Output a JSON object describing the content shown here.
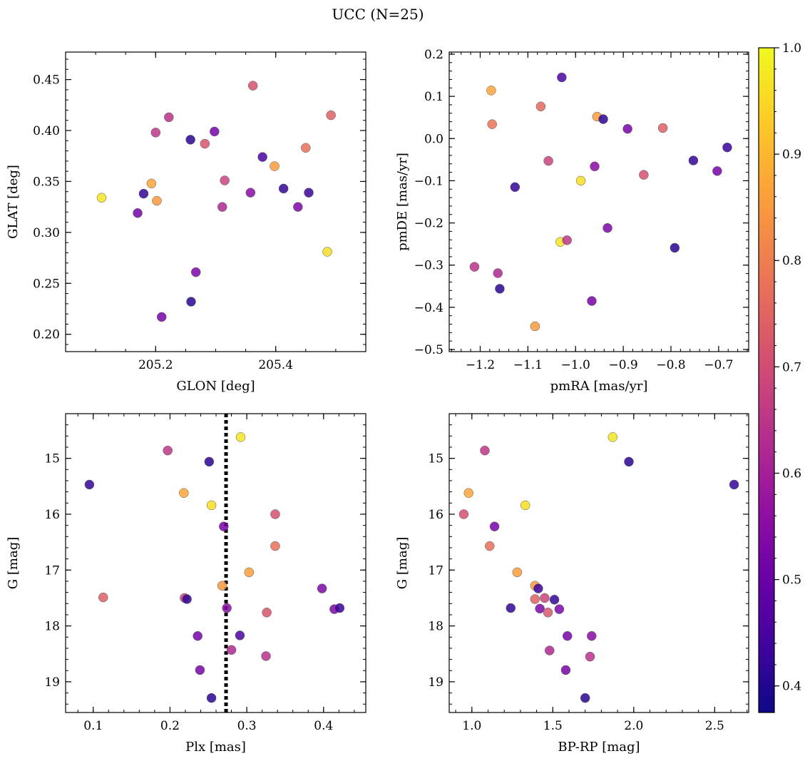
{
  "figure": {
    "title": "UCC (N=25)"
  },
  "colormap": {
    "name": "plasma",
    "stops": [
      "#0d0887",
      "#46039f",
      "#7201a8",
      "#9c179e",
      "#bd3786",
      "#d8576b",
      "#ed7953",
      "#fb9f3a",
      "#fdca26",
      "#f0f921"
    ]
  },
  "chart_data": [
    {
      "type": "scatter",
      "xlabel": "GLON [deg]",
      "ylabel": "GLAT [deg]",
      "xlim": [
        205.05,
        205.55
      ],
      "ylim": [
        0.183,
        0.477
      ],
      "xticks": [
        205.2,
        205.4
      ],
      "xtick_labels": [
        "205.2",
        "205.4"
      ],
      "yticks": [
        0.2,
        0.25,
        0.3,
        0.35,
        0.4,
        0.45
      ],
      "ytick_labels": [
        "0.20",
        "0.25",
        "0.30",
        "0.35",
        "0.40",
        "0.45"
      ],
      "x": [
        205.11,
        205.17,
        205.18,
        205.193,
        205.2,
        205.202,
        205.21,
        205.222,
        205.258,
        205.259,
        205.267,
        205.282,
        205.298,
        205.311,
        205.315,
        205.358,
        205.362,
        205.378,
        205.398,
        205.413,
        205.437,
        205.45,
        205.455,
        205.486,
        205.492
      ],
      "y": [
        0.334,
        0.319,
        0.338,
        0.348,
        0.398,
        0.331,
        0.217,
        0.413,
        0.391,
        0.232,
        0.261,
        0.387,
        0.399,
        0.325,
        0.351,
        0.339,
        0.444,
        0.374,
        0.365,
        0.343,
        0.325,
        0.383,
        0.339,
        0.281,
        0.415
      ],
      "c": [
        0.97,
        0.52,
        0.42,
        0.87,
        0.65,
        0.85,
        0.52,
        0.64,
        0.41,
        0.41,
        0.53,
        0.72,
        0.52,
        0.62,
        0.68,
        0.55,
        0.71,
        0.45,
        0.86,
        0.42,
        0.53,
        0.77,
        0.43,
        0.96,
        0.74
      ]
    },
    {
      "type": "scatter",
      "xlabel": "pmRA [mas/yr]",
      "ylabel": "pmDE [mas/yr]",
      "xlim": [
        -1.265,
        -0.637
      ],
      "ylim": [
        -0.505,
        0.205
      ],
      "xticks": [
        -1.2,
        -1.1,
        -1.0,
        -0.9,
        -0.8,
        -0.7
      ],
      "xtick_labels": [
        "−1.2",
        "−1.1",
        "−1.0",
        "−0.9",
        "−0.8",
        "−0.7"
      ],
      "yticks": [
        -0.5,
        -0.4,
        -0.3,
        -0.2,
        -0.1,
        0.0,
        0.1,
        0.2
      ],
      "ytick_labels": [
        "−0.5",
        "−0.4",
        "−0.3",
        "−0.2",
        "−0.1",
        "0.0",
        "0.1",
        "0.2"
      ],
      "x": [
        -1.177,
        -1.175,
        -1.073,
        -0.955,
        -0.942,
        -0.891,
        -0.817,
        -1.029,
        -0.753,
        -0.703,
        -0.682,
        -1.057,
        -0.96,
        -0.857,
        -0.989,
        -1.127,
        -1.032,
        -1.018,
        -0.933,
        -0.792,
        -1.212,
        -1.163,
        -1.159,
        -0.966,
        -1.085
      ],
      "y": [
        0.114,
        0.034,
        0.076,
        0.052,
        0.046,
        0.023,
        0.025,
        0.145,
        -0.052,
        -0.077,
        -0.021,
        -0.053,
        -0.066,
        -0.086,
        -0.1,
        -0.115,
        -0.245,
        -0.241,
        -0.212,
        -0.259,
        -0.304,
        -0.319,
        -0.356,
        -0.385,
        -0.445
      ],
      "c": [
        0.87,
        0.78,
        0.76,
        0.86,
        0.41,
        0.52,
        0.74,
        0.45,
        0.42,
        0.52,
        0.43,
        0.68,
        0.55,
        0.71,
        0.96,
        0.42,
        0.97,
        0.65,
        0.53,
        0.41,
        0.64,
        0.62,
        0.41,
        0.52,
        0.85
      ]
    },
    {
      "type": "scatter",
      "xlabel": "Plx [mas]",
      "ylabel": "G [mag]",
      "invert_y": true,
      "xlim": [
        0.064,
        0.455
      ],
      "ylim": [
        14.2,
        19.55
      ],
      "xticks": [
        0.1,
        0.2,
        0.3,
        0.4
      ],
      "xtick_labels": [
        "0.1",
        "0.2",
        "0.3",
        "0.4"
      ],
      "yticks": [
        15,
        16,
        17,
        18,
        19
      ],
      "ytick_labels": [
        "15",
        "16",
        "17",
        "18",
        "19"
      ],
      "vline_x": 0.273,
      "x": [
        0.292,
        0.197,
        0.251,
        0.095,
        0.218,
        0.254,
        0.337,
        0.27,
        0.337,
        0.303,
        0.268,
        0.113,
        0.219,
        0.222,
        0.398,
        0.414,
        0.421,
        0.274,
        0.326,
        0.236,
        0.291,
        0.28,
        0.325,
        0.239,
        0.254
      ],
      "y": [
        14.62,
        14.86,
        15.06,
        15.47,
        15.62,
        15.84,
        16.0,
        16.22,
        16.57,
        17.04,
        17.28,
        17.49,
        17.5,
        17.52,
        17.33,
        17.7,
        17.68,
        17.68,
        17.76,
        18.18,
        18.17,
        18.43,
        18.54,
        18.79,
        19.29
      ],
      "c": [
        0.97,
        0.65,
        0.41,
        0.42,
        0.87,
        0.96,
        0.71,
        0.52,
        0.77,
        0.86,
        0.85,
        0.74,
        0.68,
        0.42,
        0.53,
        0.53,
        0.43,
        0.55,
        0.72,
        0.52,
        0.45,
        0.62,
        0.64,
        0.52,
        0.41
      ]
    },
    {
      "type": "scatter",
      "xlabel": "BP-RP [mag]",
      "ylabel": "G [mag]",
      "invert_y": true,
      "xlim": [
        0.86,
        2.71
      ],
      "ylim": [
        14.2,
        19.55
      ],
      "xticks": [
        1.0,
        1.5,
        2.0,
        2.5
      ],
      "xtick_labels": [
        "1.0",
        "1.5",
        "2.0",
        "2.5"
      ],
      "yticks": [
        15,
        16,
        17,
        18,
        19
      ],
      "ytick_labels": [
        "15",
        "16",
        "17",
        "18",
        "19"
      ],
      "x": [
        1.87,
        1.08,
        1.97,
        2.62,
        0.98,
        1.33,
        0.95,
        1.14,
        1.11,
        1.28,
        1.39,
        1.41,
        1.39,
        1.45,
        1.51,
        1.24,
        1.42,
        1.47,
        1.54,
        1.59,
        1.74,
        1.48,
        1.73,
        1.58,
        1.7
      ],
      "y": [
        14.62,
        14.86,
        15.06,
        15.47,
        15.62,
        15.84,
        16.0,
        16.22,
        16.57,
        17.04,
        17.28,
        17.33,
        17.52,
        17.5,
        17.53,
        17.68,
        17.69,
        17.76,
        17.7,
        18.18,
        18.18,
        18.44,
        18.55,
        18.79,
        19.29
      ],
      "c": [
        0.97,
        0.65,
        0.41,
        0.42,
        0.87,
        0.96,
        0.71,
        0.52,
        0.77,
        0.86,
        0.85,
        0.43,
        0.74,
        0.68,
        0.42,
        0.42,
        0.53,
        0.72,
        0.53,
        0.52,
        0.55,
        0.62,
        0.64,
        0.52,
        0.41
      ]
    }
  ],
  "colorbar": {
    "vmin": 0.375,
    "vmax": 1.0,
    "ticks": [
      0.4,
      0.5,
      0.6,
      0.7,
      0.8,
      0.9,
      1.0
    ],
    "tick_labels": [
      "0.4",
      "0.5",
      "0.6",
      "0.7",
      "0.8",
      "0.9",
      "1.0"
    ]
  }
}
